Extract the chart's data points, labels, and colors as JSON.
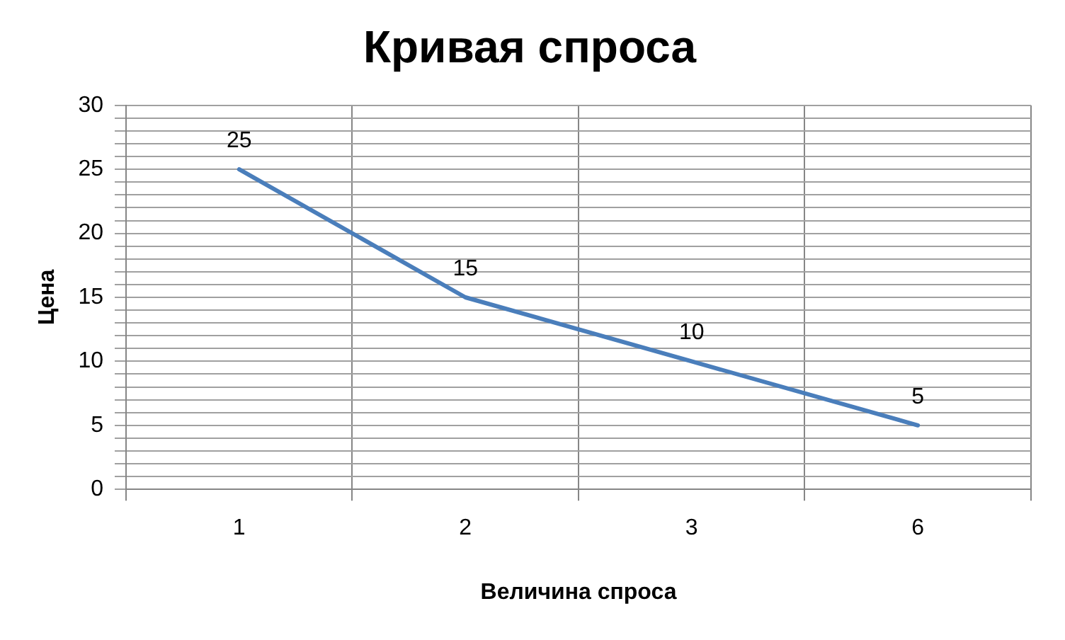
{
  "chart_data": {
    "type": "line",
    "title": "Кривая спроса",
    "xlabel": "Величина спроса",
    "ylabel": "Цена",
    "categories": [
      "1",
      "2",
      "3",
      "6"
    ],
    "series": [
      {
        "color": "#4a7ebb",
        "values": [
          25,
          15,
          10,
          5
        ]
      }
    ],
    "ylim": [
      0,
      30
    ],
    "yticks": [
      0,
      {
        "value": 1,
        "label": null
      },
      {
        "value": 2,
        "label": null
      },
      {
        "value": 3,
        "label": null
      },
      {
        "value": 4,
        "label": null
      },
      5,
      {
        "value": 6,
        "label": null
      },
      {
        "value": 7,
        "label": null
      },
      {
        "value": 8,
        "label": null
      },
      {
        "value": 9,
        "label": null
      },
      10,
      {
        "value": 11,
        "label": null
      },
      {
        "value": 12,
        "label": null
      },
      {
        "value": 13,
        "label": null
      },
      {
        "value": 14,
        "label": null
      },
      15,
      {
        "value": 16,
        "label": null
      },
      {
        "value": 17,
        "label": null
      },
      {
        "value": 18,
        "label": null
      },
      {
        "value": 19,
        "label": null
      },
      20,
      {
        "value": 21,
        "label": null
      },
      {
        "value": 22,
        "label": null
      },
      {
        "value": 23,
        "label": null
      },
      {
        "value": 24,
        "label": null
      },
      25,
      {
        "value": 26,
        "label": null
      },
      {
        "value": 27,
        "label": null
      },
      {
        "value": 28,
        "label": null
      },
      {
        "value": 29,
        "label": null
      },
      30
    ],
    "grid": true,
    "legend": false,
    "marker": "none",
    "line_style": "solid",
    "data_labels": true
  }
}
